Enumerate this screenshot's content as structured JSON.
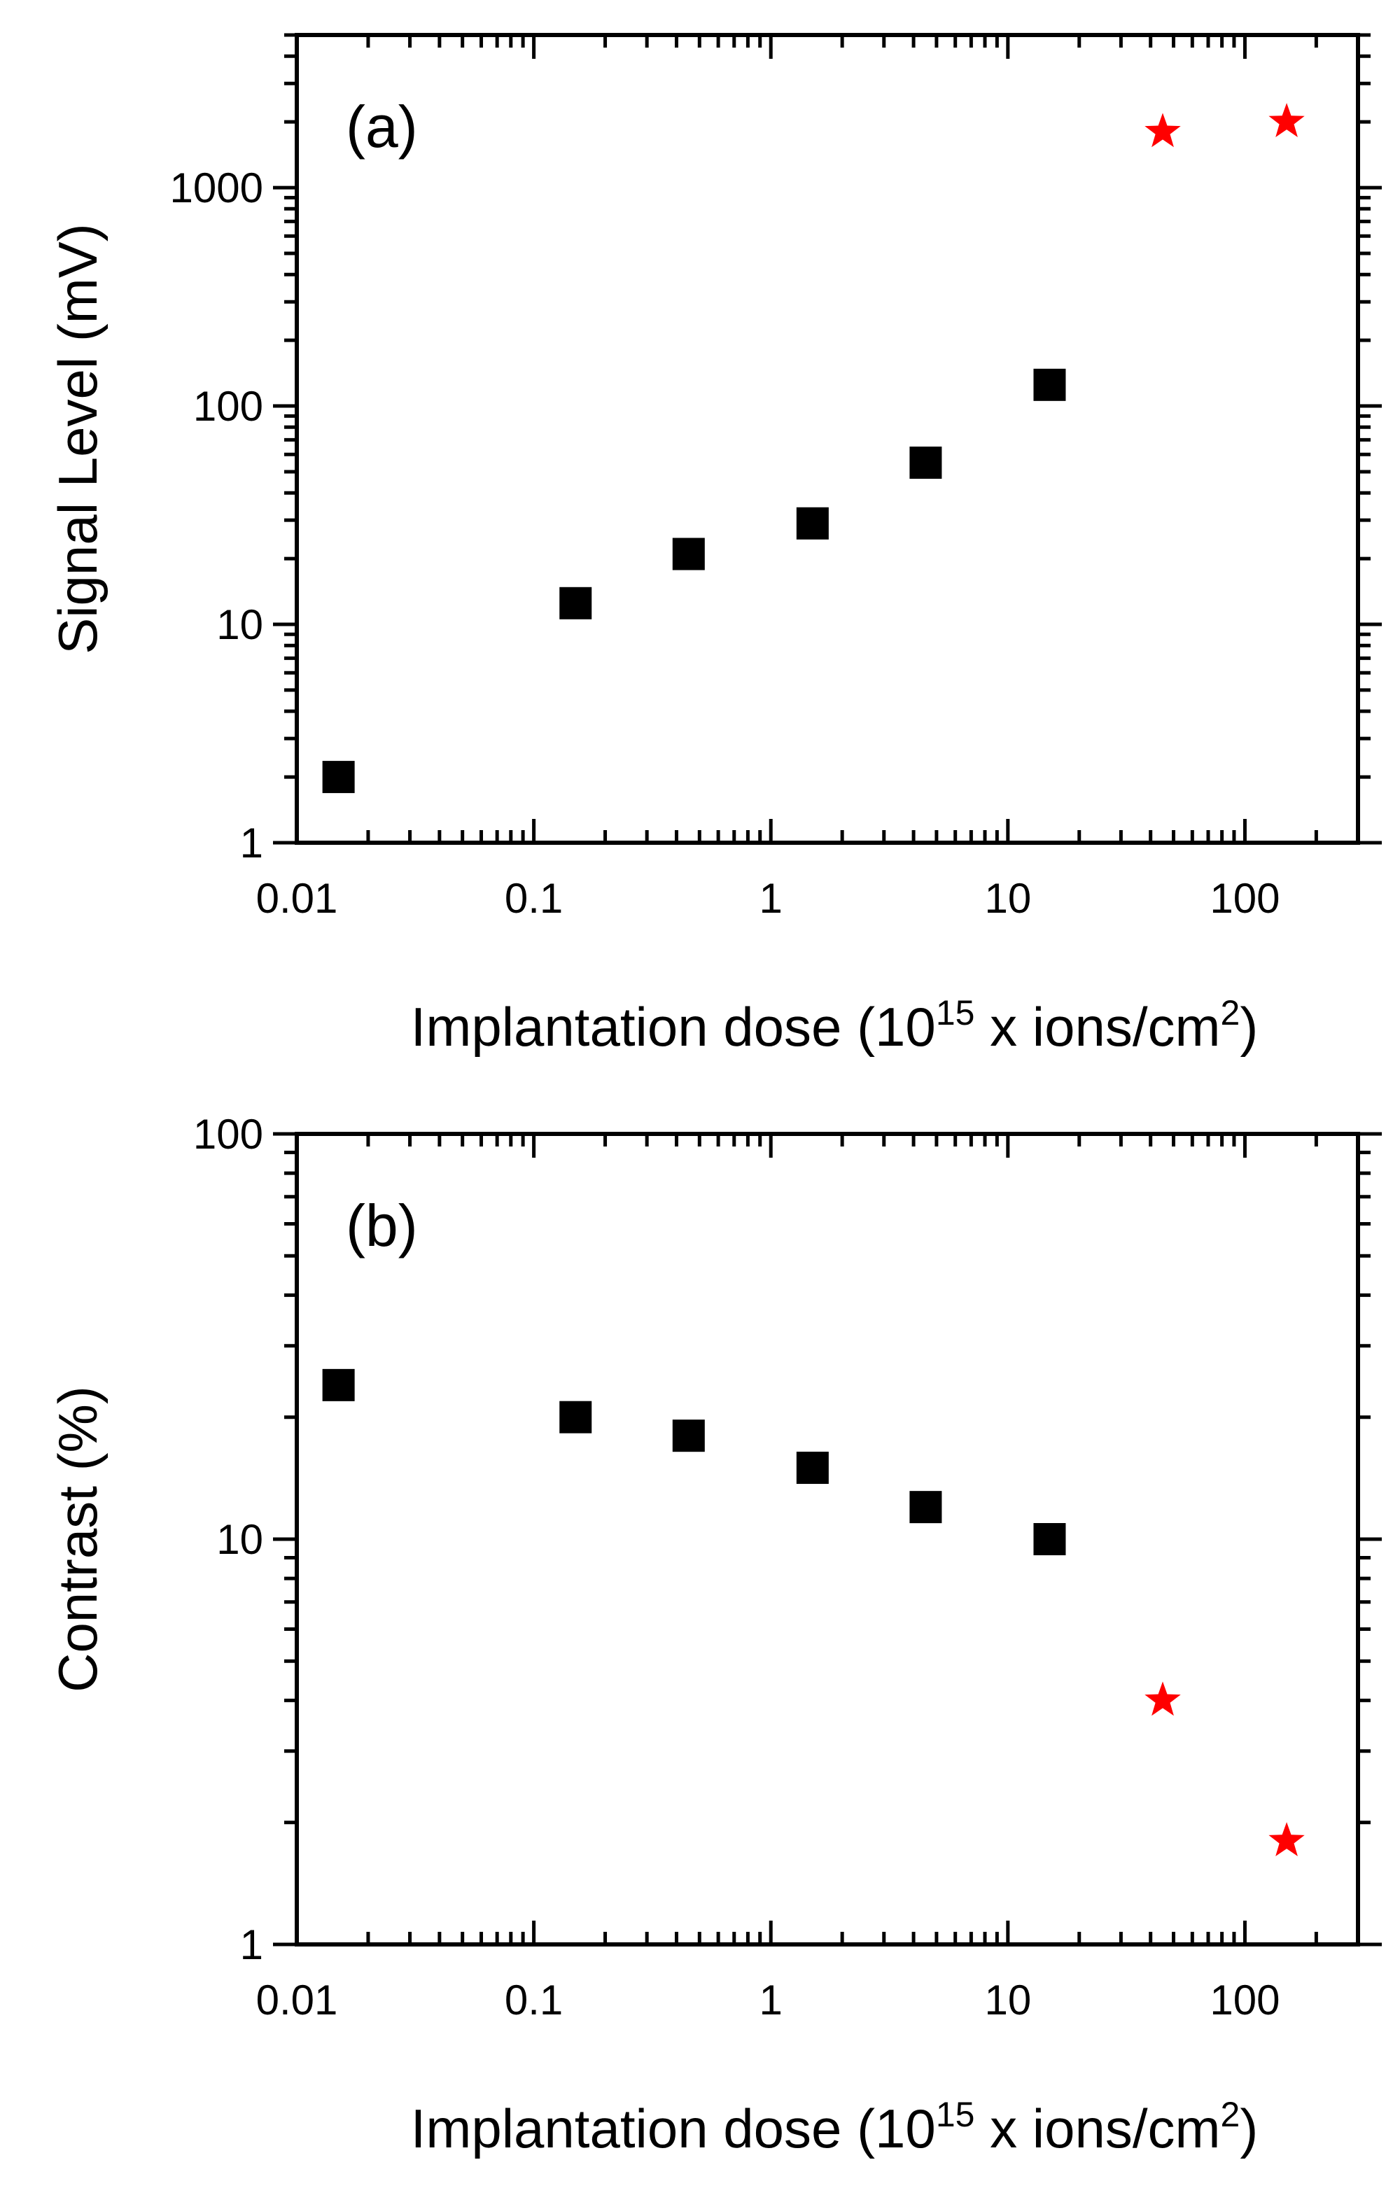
{
  "figure": {
    "panel_count": 2
  },
  "colors": {
    "axis": "#000000",
    "square_marker": "#000000",
    "star_marker": "#ff0000",
    "background": "#ffffff"
  },
  "chart_data": [
    {
      "panel": "(a)",
      "type": "scatter",
      "xscale": "log",
      "yscale": "log",
      "xlim": [
        0.01,
        300
      ],
      "ylim": [
        1,
        5000
      ],
      "xlabel_main": "Implantation dose (10",
      "xlabel_sup1": "15",
      "xlabel_mid": " x ions/cm",
      "xlabel_sup2": "2",
      "xlabel_end": ")",
      "ylabel": "Signal Level (mV)",
      "xticks": [
        0.01,
        0.1,
        1,
        10,
        100
      ],
      "xtick_labels": [
        "0.01",
        "0.1",
        "1",
        "10",
        "100"
      ],
      "yticks": [
        1,
        10,
        100,
        1000
      ],
      "ytick_labels": [
        "1",
        "10",
        "100",
        "1000"
      ],
      "series": [
        {
          "name": "squares",
          "marker": "square",
          "color": "#000000",
          "points": [
            {
              "x": 0.015,
              "y": 2
            },
            {
              "x": 0.15,
              "y": 12.5
            },
            {
              "x": 0.45,
              "y": 21
            },
            {
              "x": 1.5,
              "y": 29
            },
            {
              "x": 4.5,
              "y": 55
            },
            {
              "x": 15,
              "y": 125
            }
          ]
        },
        {
          "name": "stars",
          "marker": "star",
          "color": "#ff0000",
          "points": [
            {
              "x": 45,
              "y": 1800
            },
            {
              "x": 150,
              "y": 2000
            }
          ]
        }
      ]
    },
    {
      "panel": "(b)",
      "type": "scatter",
      "xscale": "log",
      "yscale": "log",
      "xlim": [
        0.01,
        300
      ],
      "ylim": [
        1,
        100
      ],
      "xlabel_main": "Implantation dose (10",
      "xlabel_sup1": "15",
      "xlabel_mid": " x ions/cm",
      "xlabel_sup2": "2",
      "xlabel_end": ")",
      "ylabel": "Contrast (%)",
      "xticks": [
        0.01,
        0.1,
        1,
        10,
        100
      ],
      "xtick_labels": [
        "0.01",
        "0.1",
        "1",
        "10",
        "100"
      ],
      "yticks": [
        1,
        10,
        100
      ],
      "ytick_labels": [
        "1",
        "10",
        "100"
      ],
      "series": [
        {
          "name": "squares",
          "marker": "square",
          "color": "#000000",
          "points": [
            {
              "x": 0.015,
              "y": 24
            },
            {
              "x": 0.15,
              "y": 20
            },
            {
              "x": 0.45,
              "y": 18
            },
            {
              "x": 1.5,
              "y": 15
            },
            {
              "x": 4.5,
              "y": 12
            },
            {
              "x": 15,
              "y": 10
            }
          ]
        },
        {
          "name": "stars",
          "marker": "star",
          "color": "#ff0000",
          "points": [
            {
              "x": 45,
              "y": 4
            },
            {
              "x": 150,
              "y": 1.8
            }
          ]
        }
      ]
    }
  ]
}
